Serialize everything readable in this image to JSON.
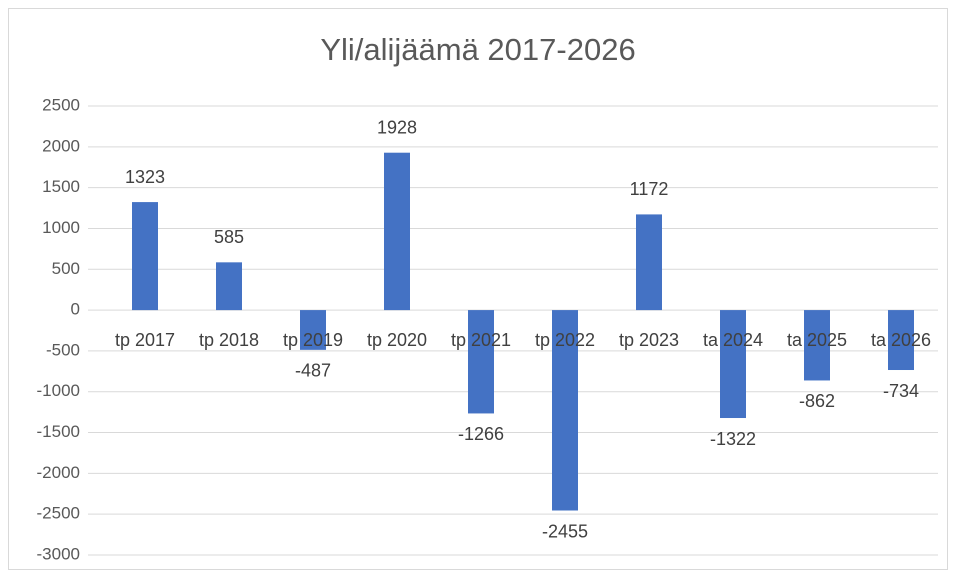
{
  "chart_data": {
    "type": "bar",
    "title": "Yli/alijäämä 2017-2026",
    "categories": [
      "tp 2017",
      "tp 2018",
      "tp 2019",
      "tp 2020",
      "tp 2021",
      "tp 2022",
      "tp 2023",
      "ta 2024",
      "ta 2025",
      "ta 2026"
    ],
    "values": [
      1323,
      585,
      -487,
      1928,
      -1266,
      -2455,
      1172,
      -1322,
      -862,
      -734
    ],
    "color": "#4472c4",
    "ylim": [
      -3000,
      2500
    ],
    "yticks": [
      -3000,
      -2500,
      -2000,
      -1500,
      -1000,
      -500,
      0,
      500,
      1000,
      1500,
      2000,
      2500
    ],
    "grid": true
  }
}
